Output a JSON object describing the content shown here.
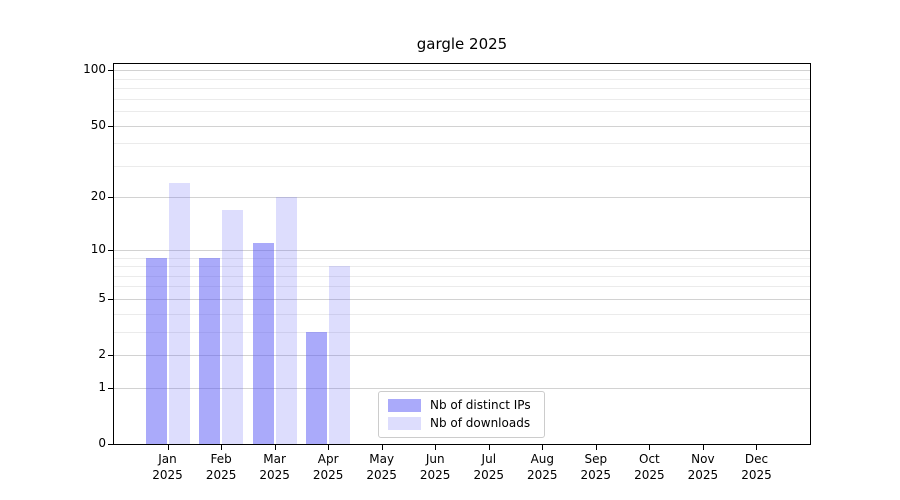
{
  "page": {
    "background": "#ffffff"
  },
  "chart_data": {
    "type": "bar",
    "title": "gargle 2025",
    "categories": [
      "Jan",
      "Feb",
      "Mar",
      "Apr",
      "May",
      "Jun",
      "Jul",
      "Aug",
      "Sep",
      "Oct",
      "Nov",
      "Dec"
    ],
    "x_sub_label": "2025",
    "series": [
      {
        "name": "Nb of distinct IPs",
        "color": "rgba(85,85,245,0.5)",
        "values": [
          9,
          9,
          11,
          3,
          null,
          null,
          null,
          null,
          null,
          null,
          null,
          null
        ]
      },
      {
        "name": "Nb of downloads",
        "color": "rgba(85,85,245,0.2)",
        "values": [
          24,
          17,
          20,
          8,
          null,
          null,
          null,
          null,
          null,
          null,
          null,
          null
        ]
      }
    ],
    "yscale": "log1p",
    "ylim": [
      0,
      108
    ],
    "yticks": [
      0,
      1,
      2,
      5,
      10,
      20,
      50,
      100
    ],
    "minor_gridlines": [
      3,
      4,
      6,
      7,
      8,
      9,
      30,
      40,
      60,
      70,
      80,
      90
    ],
    "grid": "horizontal",
    "legend_position": "lower-center",
    "colors": {
      "major_grid": "#d2d2d2",
      "minor_grid": "#ebebeb",
      "axis": "#000000",
      "text": "#000000"
    }
  }
}
